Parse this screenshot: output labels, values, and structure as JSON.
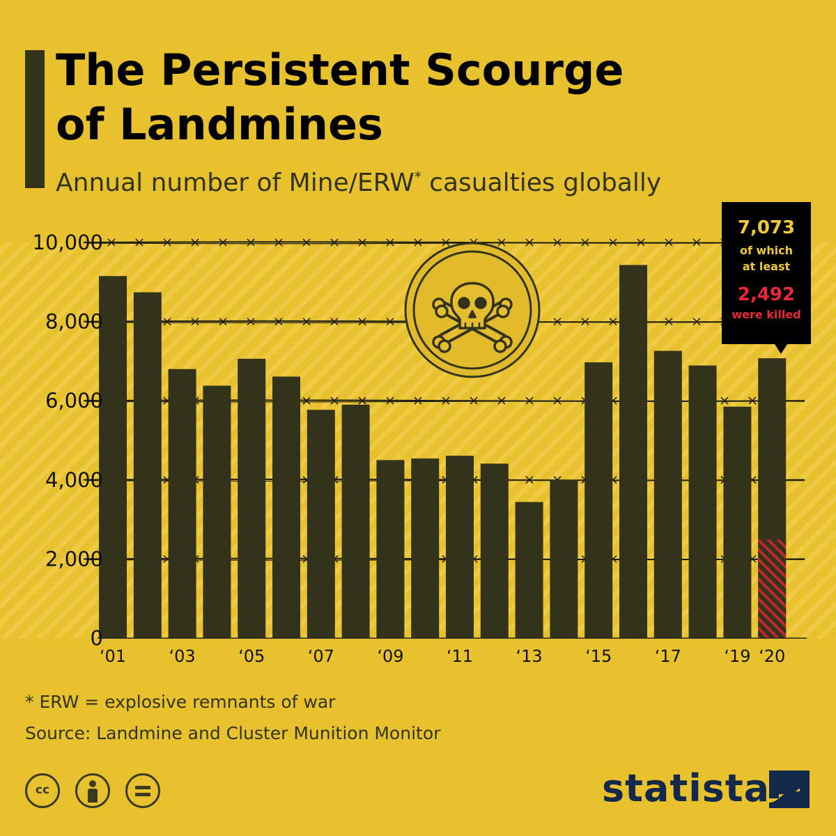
{
  "header": {
    "title_line1": "The Persistent Scourge",
    "title_line2": "of Landmines",
    "subtitle_main": "Annual number of Mine/ERW",
    "subtitle_star": "*",
    "subtitle_end": " casualties globally"
  },
  "callout": {
    "total": "7,073",
    "text1_line1": "of which",
    "text1_line2": "at least",
    "killed": "2,492",
    "text2": "were killed"
  },
  "footer": {
    "footnote": "* ERW = explosive remnants of war",
    "source": "Source: Landmine and Cluster Munition Monitor",
    "license_cc": "cc",
    "brand": "statista"
  },
  "colors": {
    "background": "#e8c12f",
    "bar": "#33331b",
    "killed_hatch": "#c0282e",
    "brand": "#13294b"
  },
  "chart_data": {
    "type": "bar",
    "categories": [
      "2001",
      "2002",
      "2003",
      "2004",
      "2005",
      "2006",
      "2007",
      "2008",
      "2009",
      "2010",
      "2011",
      "2012",
      "2013",
      "2014",
      "2015",
      "2016",
      "2017",
      "2018",
      "2019",
      "2020"
    ],
    "tick_labels": [
      "‘01",
      "",
      "‘03",
      "",
      "‘05",
      "",
      "‘07",
      "",
      "‘09",
      "",
      "‘11",
      "",
      "‘13",
      "",
      "‘15",
      "",
      "‘17",
      "",
      "‘19",
      "‘20"
    ],
    "values": [
      9150,
      8740,
      6800,
      6380,
      7060,
      6610,
      5770,
      5900,
      4500,
      4540,
      4610,
      4410,
      3440,
      4000,
      6970,
      9430,
      7260,
      6890,
      5850,
      7073
    ],
    "highlight": {
      "category": "2020",
      "killed": 2492
    },
    "ylim": [
      0,
      10000
    ],
    "yticks": [
      0,
      2000,
      4000,
      6000,
      8000,
      10000
    ],
    "ytick_labels": [
      "0",
      "2,000",
      "4,000",
      "6,000",
      "8,000",
      "10,000"
    ],
    "grid": true,
    "grid_style": "barbed-wire"
  }
}
